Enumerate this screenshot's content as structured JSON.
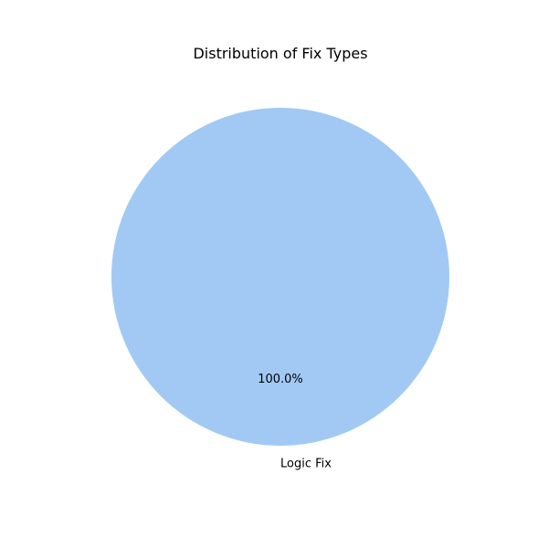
{
  "chart_data": {
    "type": "pie",
    "title": "Distribution of Fix Types",
    "slices": [
      {
        "label": "Logic Fix",
        "value": 1,
        "percent_label": "100.0%",
        "color": "#a1c9f4"
      }
    ]
  }
}
